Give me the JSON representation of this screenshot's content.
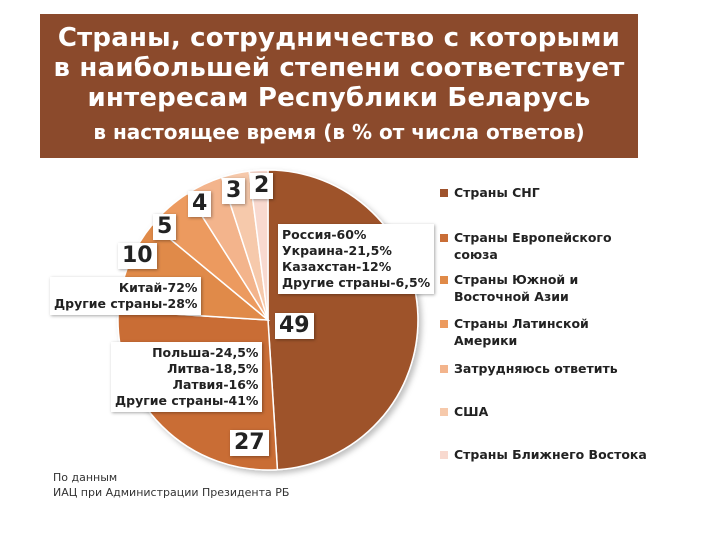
{
  "title": {
    "line1": "Страны, сотрудничество с которыми",
    "line2": "в наибольшей степени соответствует",
    "line3": "интересам  Республики Беларусь",
    "subtitle": "в настоящее время (в % от числа ответов)"
  },
  "chart_data": {
    "type": "pie",
    "title": "Страны, сотрудничество с которыми в наибольшей степени соответствует интересам  Республики Беларусь в настоящее время (в % от числа ответов)",
    "categories": [
      "Страны СНГ",
      "Страны Европейского союза",
      "Страны Южной и Восточной Азии",
      "Страны Латинской Америки",
      "Затрудняюсь ответить",
      "США",
      "Страны Ближнего Востока"
    ],
    "values": [
      49,
      27,
      10,
      5,
      4,
      3,
      2
    ],
    "colors": [
      "#9e522c",
      "#c96d36",
      "#e08a48",
      "#ec9a5e",
      "#f3b48c",
      "#f6c9ab",
      "#f8d9cf"
    ],
    "legend_placement": "right"
  },
  "callouts": {
    "cis": [
      "Россия-60%",
      "Украина-21,5%",
      "Казахстан-12%",
      "Другие страны-6,5%"
    ],
    "eu": [
      "Польша-24,5%",
      "Литва-18,5%",
      "Латвия-16%",
      "Другие страны-41%"
    ],
    "asia": [
      "Китай-72%",
      "Другие страны-28%"
    ]
  },
  "legend": {
    "items": [
      "Страны СНГ",
      "Страны Европейского союза",
      "Страны Южной и Восточной Азии",
      "Страны Латинской Америки",
      "Затрудняюсь ответить",
      "США",
      "Страны Ближнего Востока"
    ]
  },
  "source": {
    "line1": "По данным",
    "line2": "ИАЦ при Администрации Президента РБ"
  }
}
